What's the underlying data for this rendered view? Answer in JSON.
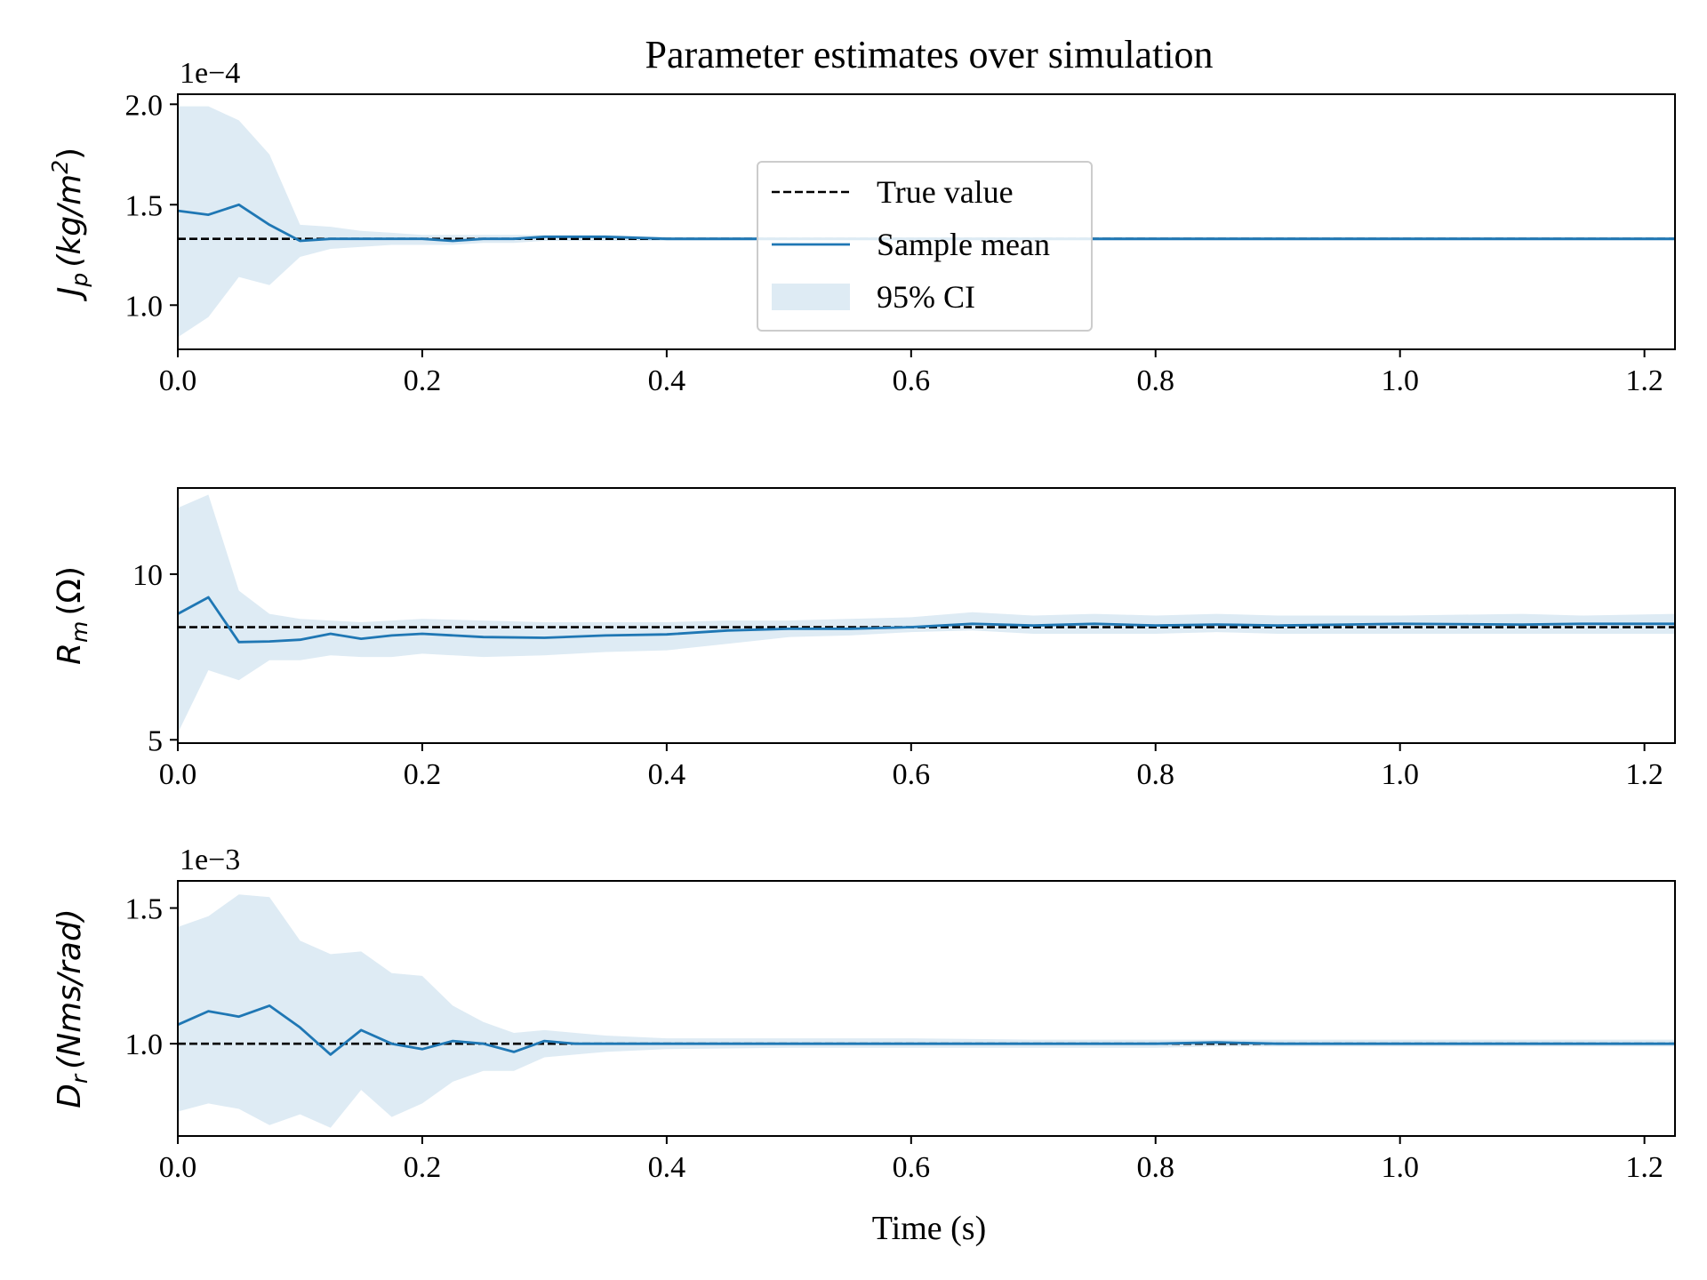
{
  "figure_title": "Parameter estimates over simulation",
  "x_axis_label": "Time (s)",
  "legend": {
    "placement": "upper-center of top panel",
    "entries": [
      {
        "label": "True value",
        "style": "dashed",
        "color": "#000000"
      },
      {
        "label": "Sample mean",
        "style": "solid",
        "color": "#1f77b4"
      },
      {
        "label": "95% CI",
        "style": "fill",
        "color": "#deebf4"
      }
    ]
  },
  "colors": {
    "mean": "#1f77b4",
    "ci": "#deebf4",
    "true": "#000000"
  },
  "chart_data": [
    {
      "type": "line",
      "panel": "top",
      "ylabel_symbol": "J",
      "ylabel_sub": "p",
      "ylabel_unit": "(kg/m",
      "ylabel_sup": "2",
      "ylabel_close": ")",
      "offset_label": "1e−4",
      "xlim": [
        0.0,
        1.225
      ],
      "ylim": [
        0.78,
        2.05
      ],
      "xticks": [
        "0.0",
        "0.2",
        "0.4",
        "0.6",
        "0.8",
        "1.0",
        "1.2"
      ],
      "yticks": [
        "1.0",
        "1.5",
        "2.0"
      ],
      "true_value": 1.33,
      "x": [
        0.0,
        0.025,
        0.05,
        0.075,
        0.1,
        0.125,
        0.15,
        0.175,
        0.2,
        0.225,
        0.25,
        0.275,
        0.3,
        0.35,
        0.4,
        0.45,
        0.5,
        0.6,
        0.7,
        0.8,
        0.9,
        1.0,
        1.1,
        1.225
      ],
      "mean": [
        1.47,
        1.45,
        1.5,
        1.4,
        1.32,
        1.33,
        1.33,
        1.33,
        1.33,
        1.32,
        1.33,
        1.33,
        1.34,
        1.34,
        1.33,
        1.33,
        1.33,
        1.33,
        1.33,
        1.33,
        1.33,
        1.33,
        1.33,
        1.33
      ],
      "ci_low": [
        0.84,
        0.94,
        1.14,
        1.1,
        1.24,
        1.28,
        1.29,
        1.3,
        1.3,
        1.3,
        1.31,
        1.31,
        1.32,
        1.32,
        1.32,
        1.32,
        1.32,
        1.32,
        1.32,
        1.32,
        1.32,
        1.32,
        1.32,
        1.32
      ],
      "ci_high": [
        1.99,
        1.99,
        1.92,
        1.75,
        1.4,
        1.39,
        1.37,
        1.36,
        1.35,
        1.35,
        1.35,
        1.35,
        1.35,
        1.35,
        1.34,
        1.34,
        1.34,
        1.34,
        1.34,
        1.34,
        1.34,
        1.34,
        1.34,
        1.34
      ]
    },
    {
      "type": "line",
      "panel": "middle",
      "ylabel_symbol": "R",
      "ylabel_sub": "m",
      "ylabel_unit": "(Ω)",
      "ylabel_sup": "",
      "ylabel_close": "",
      "offset_label": "",
      "xlim": [
        0.0,
        1.225
      ],
      "ylim": [
        4.9,
        12.6
      ],
      "xticks": [
        "0.0",
        "0.2",
        "0.4",
        "0.6",
        "0.8",
        "1.0",
        "1.2"
      ],
      "yticks": [
        "5",
        "10"
      ],
      "true_value": 8.4,
      "x": [
        0.0,
        0.025,
        0.05,
        0.075,
        0.1,
        0.125,
        0.15,
        0.175,
        0.2,
        0.25,
        0.3,
        0.35,
        0.4,
        0.45,
        0.5,
        0.55,
        0.6,
        0.65,
        0.7,
        0.75,
        0.8,
        0.85,
        0.9,
        1.0,
        1.1,
        1.15,
        1.225
      ],
      "mean": [
        8.8,
        9.3,
        7.95,
        7.97,
        8.02,
        8.2,
        8.05,
        8.15,
        8.2,
        8.1,
        8.08,
        8.15,
        8.18,
        8.3,
        8.35,
        8.35,
        8.4,
        8.5,
        8.45,
        8.5,
        8.45,
        8.48,
        8.45,
        8.5,
        8.48,
        8.5,
        8.5
      ],
      "ci_low": [
        5.2,
        7.1,
        6.8,
        7.4,
        7.4,
        7.55,
        7.5,
        7.5,
        7.6,
        7.5,
        7.55,
        7.65,
        7.7,
        7.9,
        8.1,
        8.15,
        8.25,
        8.3,
        8.2,
        8.2,
        8.2,
        8.25,
        8.2,
        8.2,
        8.2,
        8.2,
        8.2
      ],
      "ci_high": [
        12.0,
        12.4,
        9.5,
        8.8,
        8.65,
        8.6,
        8.55,
        8.6,
        8.65,
        8.6,
        8.55,
        8.55,
        8.55,
        8.6,
        8.6,
        8.65,
        8.7,
        8.85,
        8.75,
        8.8,
        8.75,
        8.8,
        8.75,
        8.75,
        8.8,
        8.75,
        8.8
      ]
    },
    {
      "type": "line",
      "panel": "bottom",
      "ylabel_symbol": "D",
      "ylabel_sub": "r",
      "ylabel_unit": "(Nms/rad)",
      "ylabel_sup": "",
      "ylabel_close": "",
      "offset_label": "1e−3",
      "xlim": [
        0.0,
        1.225
      ],
      "ylim": [
        0.66,
        1.6
      ],
      "xticks": [
        "0.0",
        "0.2",
        "0.4",
        "0.6",
        "0.8",
        "1.0",
        "1.2"
      ],
      "yticks": [
        "1.0",
        "1.5"
      ],
      "true_value": 1.0,
      "x": [
        0.0,
        0.025,
        0.05,
        0.075,
        0.1,
        0.125,
        0.15,
        0.175,
        0.2,
        0.225,
        0.25,
        0.275,
        0.3,
        0.325,
        0.35,
        0.4,
        0.5,
        0.6,
        0.7,
        0.8,
        0.85,
        0.9,
        1.0,
        1.1,
        1.2,
        1.225
      ],
      "mean": [
        1.07,
        1.12,
        1.1,
        1.14,
        1.06,
        0.96,
        1.05,
        1.0,
        0.98,
        1.01,
        1.0,
        0.97,
        1.01,
        1.0,
        1.0,
        1.0,
        1.0,
        1.0,
        1.0,
        1.0,
        1.005,
        1.0,
        1.0,
        1.0,
        1.0,
        1.0
      ],
      "ci_low": [
        0.75,
        0.78,
        0.76,
        0.7,
        0.74,
        0.69,
        0.83,
        0.73,
        0.78,
        0.86,
        0.9,
        0.9,
        0.95,
        0.96,
        0.97,
        0.98,
        0.985,
        0.985,
        0.985,
        0.985,
        0.99,
        0.99,
        0.99,
        0.99,
        0.99,
        0.99
      ],
      "ci_high": [
        1.43,
        1.47,
        1.55,
        1.54,
        1.38,
        1.33,
        1.34,
        1.26,
        1.25,
        1.14,
        1.08,
        1.04,
        1.05,
        1.04,
        1.03,
        1.02,
        1.02,
        1.02,
        1.015,
        1.015,
        1.015,
        1.015,
        1.015,
        1.015,
        1.015,
        1.015
      ]
    }
  ]
}
